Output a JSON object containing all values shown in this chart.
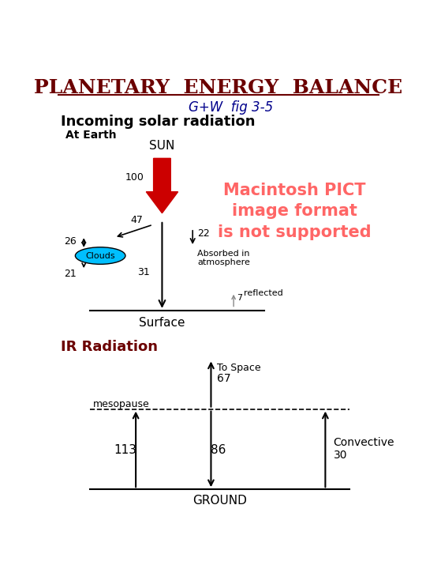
{
  "title": "PLANETARY  ENERGY  BALANCE",
  "title_color": "#6B0000",
  "subtitle": "G+W  fig 3-5",
  "subtitle_color": "#00008B",
  "incoming_label": "Incoming solar radiation",
  "at_earth_label": "At Earth",
  "sun_label": "SUN",
  "surface_label": "Surface",
  "ground_label": "GROUND",
  "mesopause_label": "mesopause",
  "ir_label": "IR Radiation",
  "ir_color": "#6B0000",
  "tospace_label": "To Space",
  "tospace_val": "67",
  "convective_label": "Convective\n30",
  "val_113": "113",
  "val_86": "86",
  "val_100": "100",
  "val_47": "47",
  "val_26": "26",
  "val_21": "21",
  "val_22": "22",
  "val_31": "31",
  "val_7": "7",
  "clouds_label": "Clouds",
  "absorbed_label": "Absorbed in\natmosphere",
  "reflected_label": "reflected",
  "macintosh_text": "Macintosh PICT\nimage format\nis not supported",
  "macintosh_color": "#FF6666",
  "bg_color": "#FFFFFF",
  "arrow_color": "#000000",
  "red_arrow_color": "#CC0000"
}
